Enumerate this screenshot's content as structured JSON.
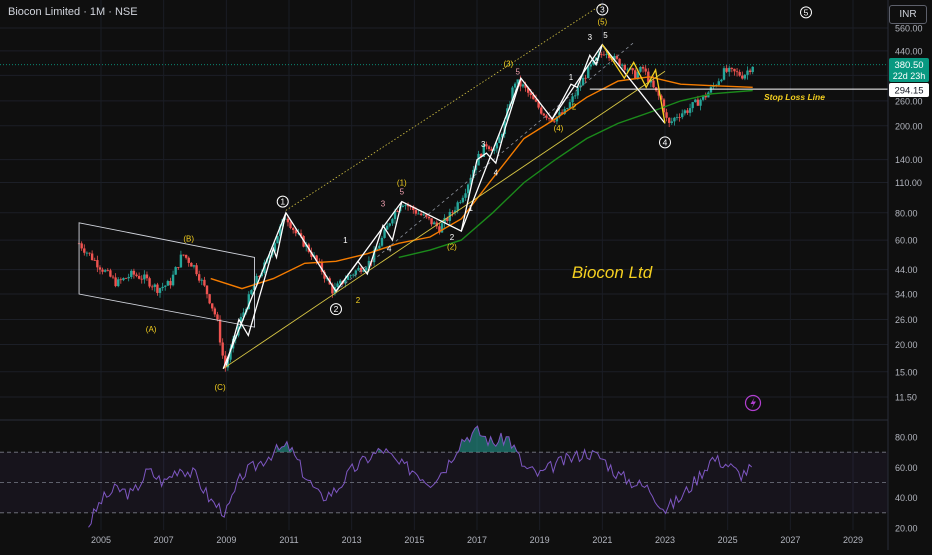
{
  "header": {
    "symbol_title": "Biocon Limited · 1M · NSE",
    "currency": "INR"
  },
  "watermark": {
    "text": "Biocon Ltd",
    "color": "#f5d020"
  },
  "badges": {
    "price": "380.50",
    "countdown": "22d 23h",
    "stop_loss_value": "294.15",
    "stop_loss_label": "Stop Loss Line"
  },
  "colors": {
    "up": "#26a69a",
    "down": "#ef5350",
    "wave_primary": "#ffffff",
    "wave_secondary": "#f5d020",
    "ema_fast": "#f57c00",
    "ema_slow": "#1b8a1b",
    "rsi": "#7e57c2",
    "background": "#0f0f0f"
  },
  "wave_labels": {
    "abc": [
      "(A)",
      "(B)",
      "(C)"
    ],
    "minor": [
      "1",
      "2",
      "3",
      "4",
      "5"
    ],
    "intermediate": [
      "(1)",
      "(2)",
      "(3)",
      "(4)",
      "(5)"
    ],
    "primary": [
      "1",
      "2",
      "3",
      "4",
      "5"
    ],
    "wave1_sub": [
      "1",
      "2",
      "3",
      "4",
      "5"
    ],
    "wave3_sub": [
      "1",
      "2",
      "3",
      "4",
      "5"
    ]
  },
  "lightning_icon": "lightning-icon",
  "chart_data": {
    "type": "line",
    "title": "Biocon Limited · 1M · NSE",
    "y_scale": "log",
    "x_axis": {
      "ticks": [
        "2005",
        "2007",
        "2009",
        "2011",
        "2013",
        "2015",
        "2017",
        "2019",
        "2021",
        "2023",
        "2025",
        "2027",
        "2029"
      ],
      "range": [
        2004.0,
        2030.6
      ]
    },
    "y_axis": {
      "ticks": [
        "560.00",
        "440.00",
        "340.00",
        "260.00",
        "200.00",
        "140.00",
        "110.00",
        "80.00",
        "60.00",
        "44.00",
        "34.00",
        "26.00",
        "20.00",
        "15.00",
        "11.50"
      ],
      "range": [
        10,
        690
      ]
    },
    "price": {
      "x": [
        2004.3,
        2004.6,
        2005.0,
        2005.5,
        2006.0,
        2006.4,
        2006.8,
        2007.2,
        2007.6,
        2008.0,
        2008.4,
        2008.7,
        2008.95,
        2009.2,
        2009.5,
        2009.9,
        2010.3,
        2010.6,
        2010.9,
        2011.2,
        2011.6,
        2012.0,
        2012.4,
        2012.8,
        2013.2,
        2013.6,
        2014.0,
        2014.3,
        2014.6,
        2015.0,
        2015.4,
        2015.8,
        2016.2,
        2016.6,
        2017.0,
        2017.3,
        2017.6,
        2017.9,
        2018.2,
        2018.5,
        2018.8,
        2019.1,
        2019.4,
        2019.8,
        2020.2,
        2020.5,
        2020.8,
        2021.1,
        2021.4,
        2021.7,
        2022.0,
        2022.3,
        2022.6,
        2022.9,
        2023.1,
        2023.4,
        2023.7,
        2024.0,
        2024.3,
        2024.6,
        2024.9,
        2025.2,
        2025.5,
        2025.8
      ],
      "close": [
        58,
        52,
        45,
        38,
        42,
        40,
        36,
        38,
        52,
        45,
        34,
        26,
        15.5,
        20,
        27,
        38,
        48,
        62,
        78,
        65,
        55,
        45,
        35,
        40,
        44,
        48,
        62,
        78,
        90,
        82,
        75,
        68,
        80,
        100,
        140,
        165,
        155,
        210,
        320,
        300,
        260,
        230,
        215,
        230,
        290,
        350,
        400,
        445,
        400,
        380,
        340,
        365,
        300,
        260,
        200,
        225,
        235,
        255,
        275,
        310,
        355,
        350,
        340,
        380.5
      ]
    },
    "ema_fast": {
      "x": [
        2008.5,
        2009.5,
        2010.5,
        2011.5,
        2012.5,
        2013.5,
        2014.5,
        2015.5,
        2016.5,
        2017.5,
        2018.5,
        2019.5,
        2020.5,
        2021.5,
        2022.5,
        2023.5,
        2024.5,
        2025.8
      ],
      "y": [
        40,
        36,
        40,
        47,
        48,
        52,
        58,
        62,
        75,
        115,
        175,
        215,
        270,
        320,
        335,
        310,
        305,
        300
      ]
    },
    "ema_slow": {
      "x": [
        2014.5,
        2015.5,
        2016.5,
        2017.5,
        2018.5,
        2019.5,
        2020.5,
        2021.5,
        2022.5,
        2023.5,
        2024.5,
        2025.8
      ],
      "y": [
        50,
        54,
        60,
        80,
        110,
        140,
        175,
        205,
        230,
        260,
        280,
        290
      ]
    },
    "stop_loss": 294.15,
    "rsi": {
      "y_ticks": [
        "80.00",
        "60.00",
        "40.00",
        "20.00"
      ],
      "y_range": [
        18,
        95
      ],
      "bands": [
        70,
        50,
        30
      ],
      "x": [
        2004.6,
        2005.0,
        2005.5,
        2006.0,
        2006.5,
        2007.0,
        2007.5,
        2008.0,
        2008.5,
        2009.0,
        2009.5,
        2010.0,
        2010.5,
        2011.0,
        2011.5,
        2012.0,
        2012.5,
        2013.0,
        2013.5,
        2014.0,
        2014.5,
        2015.0,
        2015.5,
        2016.0,
        2016.5,
        2017.0,
        2017.5,
        2018.0,
        2018.5,
        2019.0,
        2019.5,
        2020.0,
        2020.5,
        2021.0,
        2021.5,
        2022.0,
        2022.5,
        2023.0,
        2023.5,
        2024.0,
        2024.5,
        2025.0,
        2025.4,
        2025.8
      ],
      "y": [
        22,
        38,
        46,
        42,
        58,
        50,
        60,
        55,
        38,
        30,
        55,
        62,
        70,
        74,
        55,
        40,
        45,
        58,
        66,
        72,
        62,
        58,
        50,
        60,
        78,
        84,
        76,
        80,
        60,
        55,
        62,
        66,
        70,
        66,
        55,
        50,
        46,
        32,
        40,
        52,
        66,
        62,
        55,
        60
      ]
    }
  }
}
